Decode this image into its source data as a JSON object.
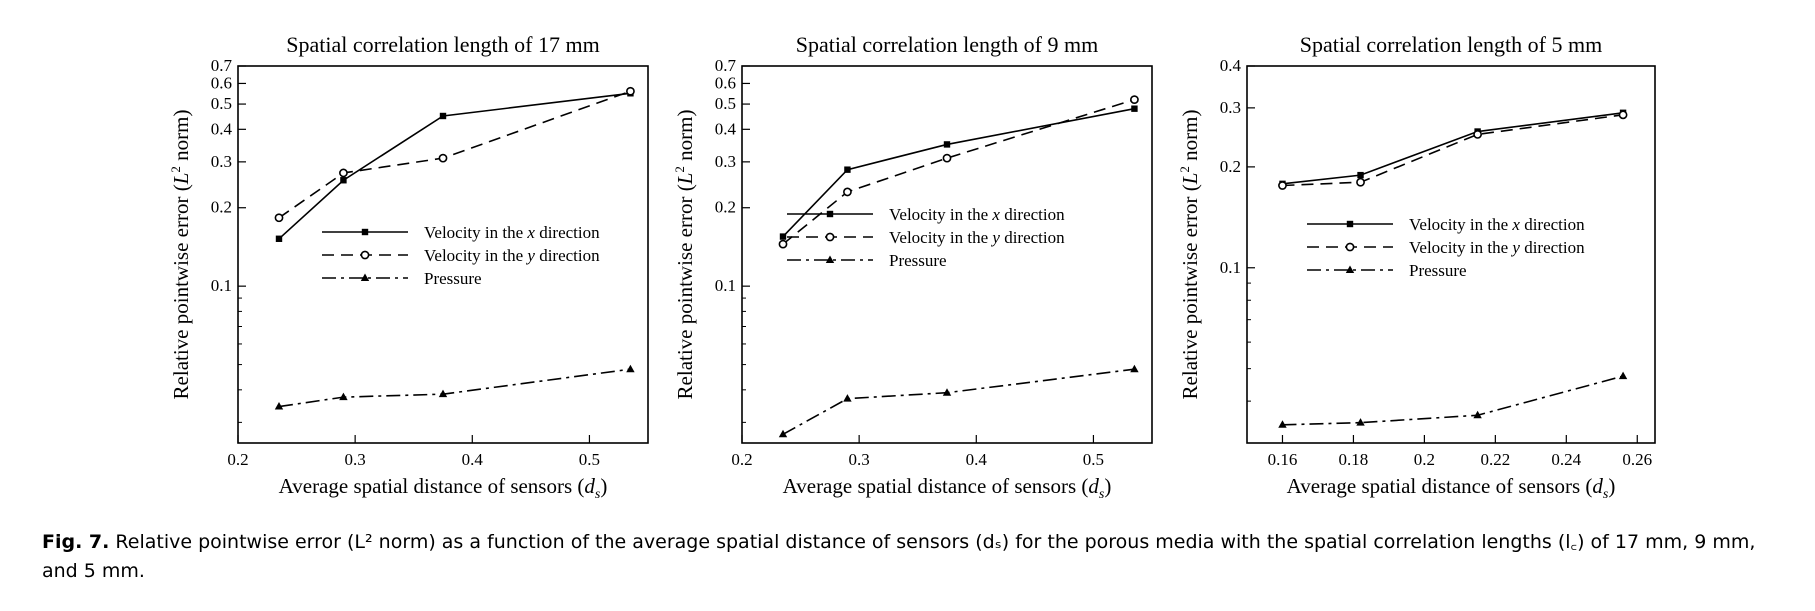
{
  "chart_data": [
    {
      "type": "line",
      "title": "Spatial correlation length of 17 mm",
      "xlabel": "Average spatial distance of sensors",
      "xlabel_sub": "s",
      "ylabel": "Relative pointwise error",
      "ylabel_norm": "norm",
      "y_scale": "log",
      "xlim": [
        0.2,
        0.55
      ],
      "ylim": [
        0.025,
        0.7
      ],
      "xticks": [
        0.2,
        0.3,
        0.4,
        0.5
      ],
      "xtick_labels": [
        "0.2",
        "0.3",
        "0.4",
        "0.5"
      ],
      "yticks": [
        0.1,
        0.2,
        0.3,
        0.4,
        0.5,
        0.6,
        0.7
      ],
      "ytick_labels": [
        "0.1",
        "0.2",
        "0.3",
        "0.4",
        "0.5",
        "0.6",
        "0.7"
      ],
      "legend": {
        "position": "center"
      },
      "series": [
        {
          "name": "Velocity in the x direction",
          "style": "solid",
          "marker": "square",
          "x": [
            0.235,
            0.29,
            0.375,
            0.535
          ],
          "y": [
            0.152,
            0.255,
            0.45,
            0.55
          ]
        },
        {
          "name": "Velocity in the y direction",
          "style": "dashed",
          "marker": "circle",
          "x": [
            0.235,
            0.29,
            0.375,
            0.535
          ],
          "y": [
            0.183,
            0.272,
            0.31,
            0.56
          ]
        },
        {
          "name": "Pressure",
          "style": "dashdot",
          "marker": "triangle",
          "x": [
            0.235,
            0.29,
            0.375,
            0.535
          ],
          "y": [
            0.0345,
            0.0375,
            0.0385,
            0.048
          ]
        }
      ]
    },
    {
      "type": "line",
      "title": "Spatial correlation length of 9 mm",
      "xlabel": "Average spatial distance of sensors",
      "xlabel_sub": "s",
      "ylabel": "Relative pointwise error",
      "ylabel_norm": "norm",
      "y_scale": "log",
      "xlim": [
        0.2,
        0.55
      ],
      "ylim": [
        0.025,
        0.7
      ],
      "xticks": [
        0.2,
        0.3,
        0.4,
        0.5
      ],
      "xtick_labels": [
        "0.2",
        "0.3",
        "0.4",
        "0.5"
      ],
      "yticks": [
        0.1,
        0.2,
        0.3,
        0.4,
        0.5,
        0.6,
        0.7
      ],
      "ytick_labels": [
        "0.1",
        "0.2",
        "0.3",
        "0.4",
        "0.5",
        "0.6",
        "0.7"
      ],
      "legend": {
        "position": "center-left"
      },
      "series": [
        {
          "name": "Velocity in the x direction",
          "style": "solid",
          "marker": "square",
          "x": [
            0.235,
            0.29,
            0.375,
            0.535
          ],
          "y": [
            0.155,
            0.28,
            0.35,
            0.48
          ]
        },
        {
          "name": "Velocity in the y direction",
          "style": "dashed",
          "marker": "circle",
          "x": [
            0.235,
            0.29,
            0.375,
            0.535
          ],
          "y": [
            0.145,
            0.23,
            0.31,
            0.52
          ]
        },
        {
          "name": "Pressure",
          "style": "dashdot",
          "marker": "triangle",
          "x": [
            0.235,
            0.29,
            0.375,
            0.535
          ],
          "y": [
            0.027,
            0.037,
            0.039,
            0.048
          ]
        }
      ]
    },
    {
      "type": "line",
      "title": "Spatial correlation length of 5 mm",
      "xlabel": "Average spatial distance of sensors",
      "xlabel_sub": "s",
      "ylabel": "Relative pointwise error",
      "ylabel_norm": "norm",
      "y_scale": "log",
      "xlim": [
        0.15,
        0.265
      ],
      "ylim": [
        0.03,
        0.4
      ],
      "xticks": [
        0.16,
        0.18,
        0.2,
        0.22,
        0.24,
        0.26
      ],
      "xtick_labels": [
        "0.16",
        "0.18",
        "0.2",
        "0.22",
        "0.24",
        "0.26"
      ],
      "yticks": [
        0.1,
        0.2,
        0.3,
        0.4
      ],
      "ytick_labels": [
        "0.1",
        "0.2",
        "0.3",
        "0.4"
      ],
      "legend": {
        "position": "center"
      },
      "series": [
        {
          "name": "Velocity in the x direction",
          "style": "solid",
          "marker": "square",
          "x": [
            0.16,
            0.182,
            0.215,
            0.256
          ],
          "y": [
            0.178,
            0.189,
            0.255,
            0.29
          ]
        },
        {
          "name": "Velocity in the y direction",
          "style": "dashed",
          "marker": "circle",
          "x": [
            0.16,
            0.182,
            0.215,
            0.256
          ],
          "y": [
            0.176,
            0.18,
            0.25,
            0.286
          ]
        },
        {
          "name": "Pressure",
          "style": "dashdot",
          "marker": "triangle",
          "x": [
            0.16,
            0.182,
            0.215,
            0.256
          ],
          "y": [
            0.034,
            0.0345,
            0.0363,
            0.0475
          ]
        }
      ]
    }
  ],
  "caption": {
    "label": "Fig. 7.",
    "text": "Relative pointwise error (L² norm) as a function of the average spatial distance of sensors (dₛ) for the porous media with the spatial correlation lengths (l꜀) of 17 mm, 9 mm, and 5 mm."
  }
}
